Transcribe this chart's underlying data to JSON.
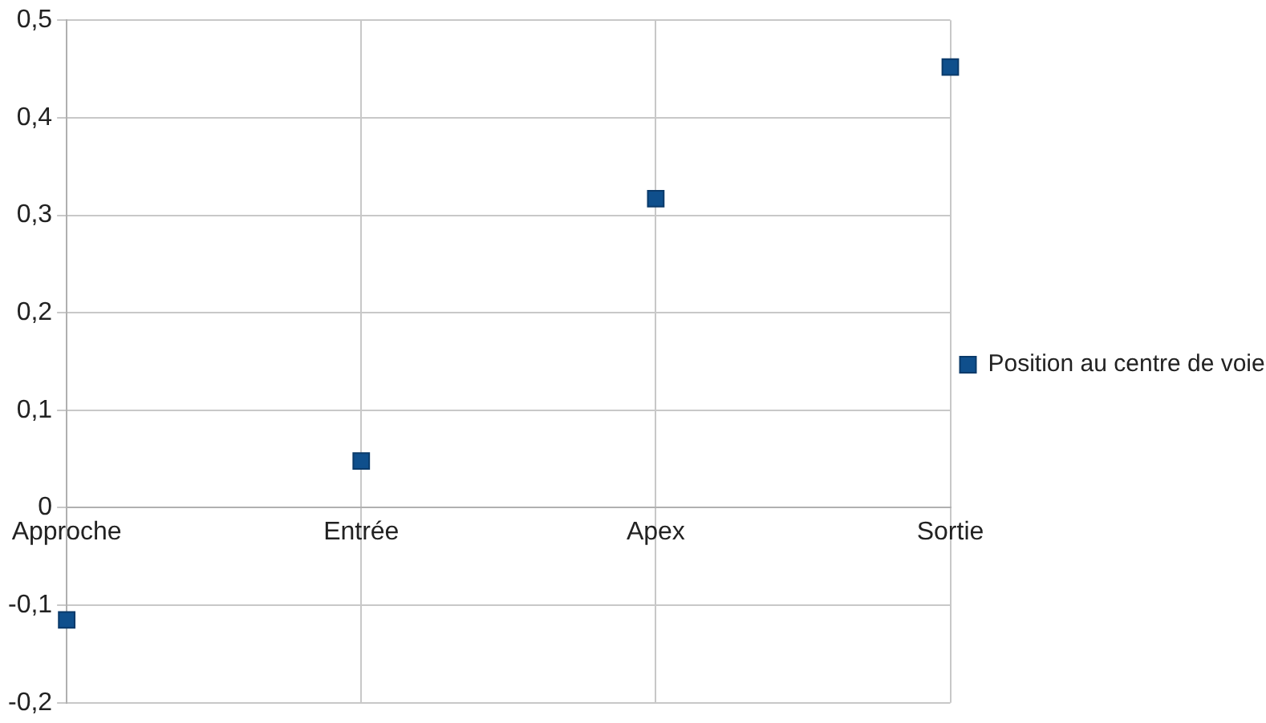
{
  "chart_data": {
    "type": "scatter",
    "categories": [
      "Approche",
      "Entrée",
      "Apex",
      "Sortie"
    ],
    "series": [
      {
        "name": "Position au centre de voie",
        "color": "#0f4f8c",
        "values": [
          -0.115,
          0.048,
          0.317,
          0.452
        ]
      }
    ],
    "ylim": [
      -0.2,
      0.5
    ],
    "yticks": [
      {
        "value": -0.2,
        "label": "-0,2"
      },
      {
        "value": -0.1,
        "label": "-0,1"
      },
      0,
      {
        "value": 0.1,
        "label": "0,1"
      },
      {
        "value": 0.2,
        "label": "0,2"
      },
      {
        "value": 0.3,
        "label": "0,3"
      },
      {
        "value": 0.4,
        "label": "0,4"
      },
      {
        "value": 0.5,
        "label": "0,5"
      }
    ],
    "grid": true,
    "legend": "right",
    "marker": "square"
  }
}
